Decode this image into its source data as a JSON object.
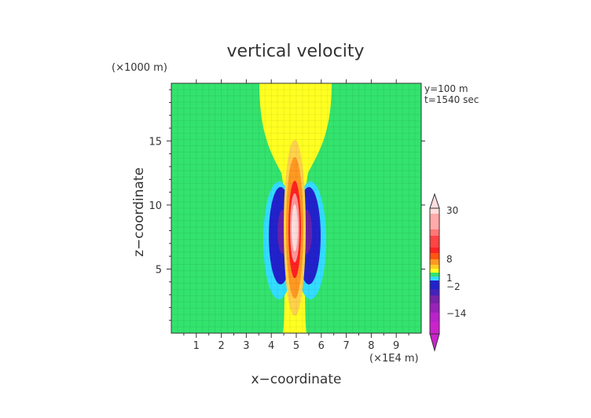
{
  "chart_data": {
    "type": "heatmap",
    "title": "vertical velocity",
    "xlabel": "x−coordinate",
    "ylabel": "z−coordinate",
    "x_unit": "(×1E4 m)",
    "y_unit": "(×1000 m)",
    "annotations": [
      "y=100 m",
      "t=1540 sec"
    ],
    "xlim": [
      0,
      10
    ],
    "ylim": [
      0,
      19.5
    ],
    "x_ticks": [
      1,
      2,
      3,
      4,
      5,
      6,
      7,
      8,
      9
    ],
    "y_ticks": [
      5,
      10,
      15
    ],
    "colorbar": {
      "labels": [
        "30",
        "8",
        "1",
        "−2",
        "−14"
      ],
      "levels": [
        -14,
        -2,
        1,
        8,
        30
      ],
      "colors": {
        "strong_negative": "#cc22cc",
        "negative": "#2222cc",
        "weak_negative": "#33ddff",
        "background": "#33e36e",
        "weak_positive": "#ffff22",
        "positive": "#ff9922",
        "strong_positive": "#ff2222",
        "max_positive": "#ffdddd"
      }
    },
    "features": {
      "updraft_center": {
        "x": 5,
        "z": 8.5
      },
      "downdraft_lobes_x": [
        4.3,
        5.7
      ],
      "plume_top": 19.5
    }
  }
}
